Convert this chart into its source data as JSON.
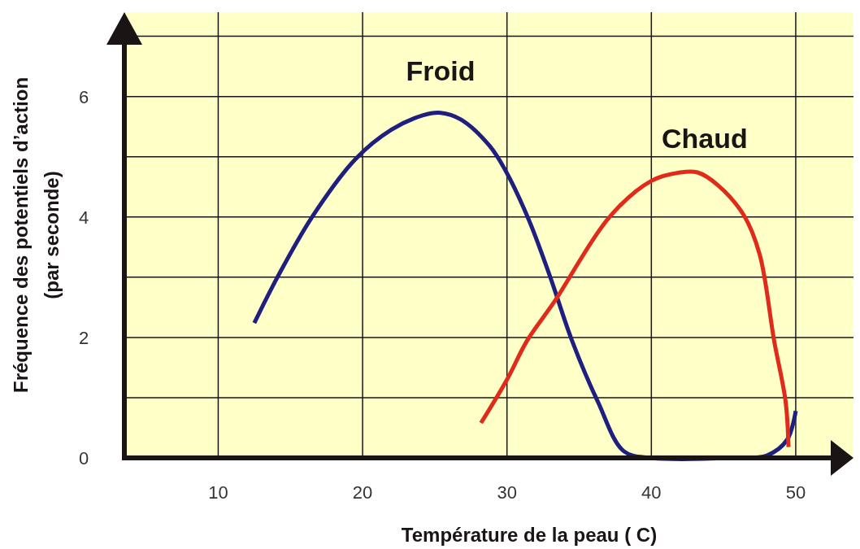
{
  "chart_data": {
    "type": "line",
    "xlabel": "Température de la peau ( C)",
    "ylabel": "Fréquence des potentiels d’action\n(par seconde)",
    "xlim": [
      3.5,
      54
    ],
    "ylim": [
      0,
      7.4
    ],
    "xticks": [
      10,
      20,
      30,
      40,
      50
    ],
    "yticks": [
      0,
      {
        "value": 1,
        "label": null
      },
      2,
      {
        "value": 3,
        "label": null
      },
      4,
      {
        "value": 5,
        "label": null
      },
      6,
      {
        "value": 7,
        "label": null
      }
    ],
    "grid": true,
    "marker": "none",
    "line_style": "solid",
    "series": [
      {
        "name": "Froid",
        "color": "#1f1f7f",
        "x": [
          12.5,
          14.1,
          16.5,
          19.5,
          22.0,
          24.2,
          25.4,
          26.8,
          28.8,
          29.9,
          31.5,
          33.0,
          34.5,
          36.3,
          38.1,
          40,
          45.7,
          48,
          49.4,
          50
        ],
        "values": [
          2.24,
          3.0,
          4.0,
          4.96,
          5.45,
          5.69,
          5.73,
          5.62,
          5.18,
          4.77,
          3.96,
          3.0,
          1.95,
          0.93,
          0.11,
          0,
          0,
          0.04,
          0.3,
          0.78
        ]
      },
      {
        "name": "Chaud",
        "color": "#e02a1a",
        "x": [
          28.2,
          30,
          31.4,
          33.3,
          37.1,
          40,
          42,
          43.2,
          44.6,
          46.4,
          47.5,
          48.5,
          49.3,
          49.5
        ],
        "values": [
          0.58,
          1.3,
          1.95,
          2.6,
          4.0,
          4.6,
          4.74,
          4.74,
          4.53,
          4.03,
          3.38,
          1.95,
          0.93,
          0.18
        ]
      }
    ]
  }
}
